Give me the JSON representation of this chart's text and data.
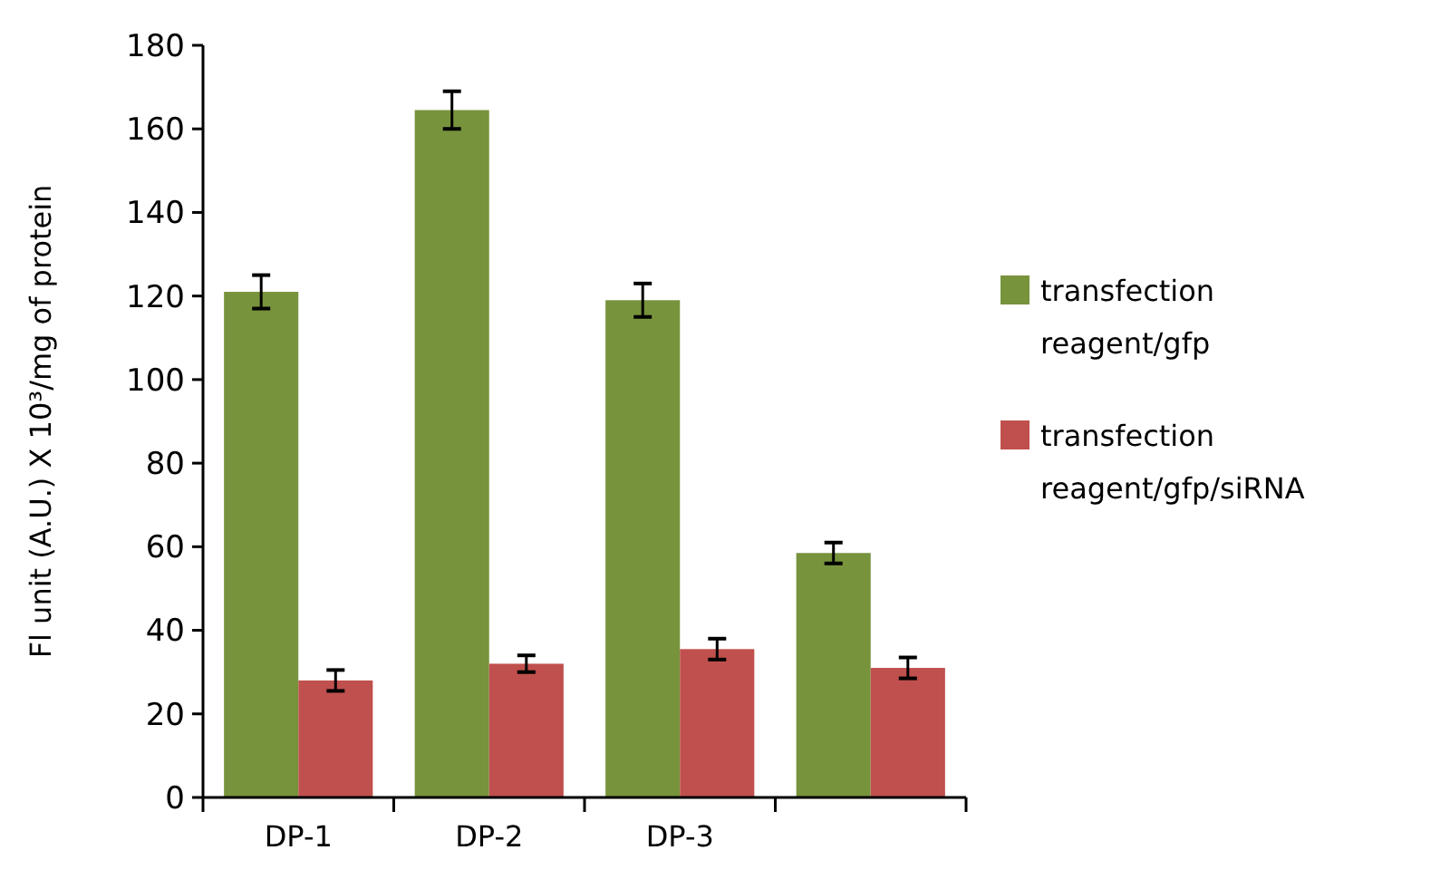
{
  "chart_data": {
    "type": "bar",
    "ylabel": "Fl unit (A.U.) X 10³/mg of protein",
    "categories": [
      "DP-1",
      "DP-2",
      "DP-3",
      null
    ],
    "series": [
      {
        "name": "transfection reagent/gfp",
        "color": "#77933c",
        "values": [
          121,
          164.5,
          119,
          58.5
        ],
        "errors": [
          4,
          4.5,
          4,
          2.5
        ]
      },
      {
        "name": "transfection reagent/gfp/siRNA",
        "color": "#c0504d",
        "values": [
          28,
          32,
          35.5,
          31
        ],
        "errors": [
          2.5,
          2,
          2.5,
          2.5
        ]
      }
    ],
    "ylim": [
      0,
      180
    ],
    "yticks": [
      0,
      20,
      40,
      60,
      80,
      100,
      120,
      140,
      160,
      180
    ],
    "legend": "right",
    "grid": false
  }
}
